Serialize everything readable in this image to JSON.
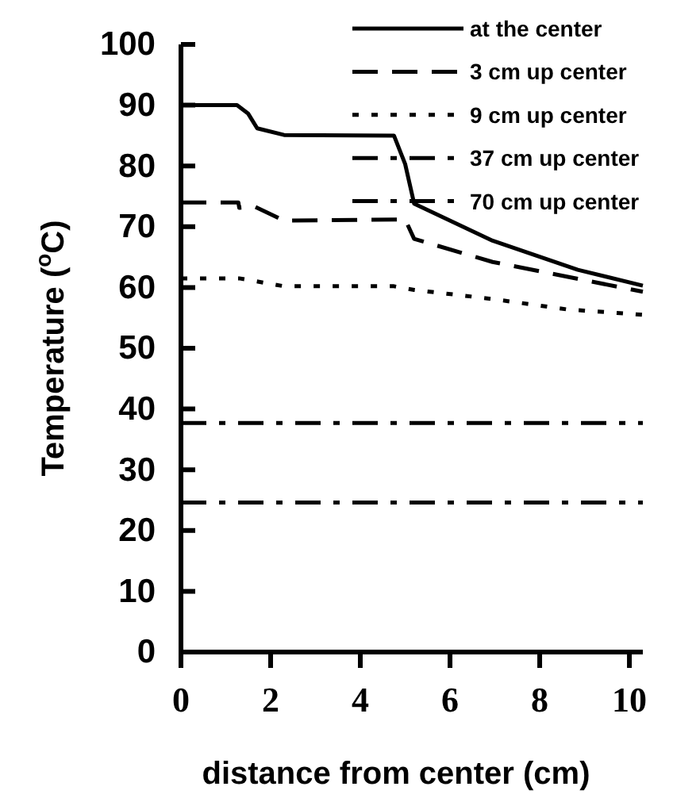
{
  "chart_data": {
    "type": "line",
    "xlabel": "distance from center (cm)",
    "ylabel": "Temperature ($^{o}$C)",
    "xlim": [
      0,
      10.3
    ],
    "xticks": [
      0,
      2,
      4,
      6,
      8,
      10
    ],
    "ylim": [
      0,
      100
    ],
    "yticks": [
      0,
      10,
      20,
      30,
      40,
      50,
      60,
      70,
      80,
      90,
      100
    ],
    "legend": "top right",
    "grid": false,
    "marker": "none",
    "series": [
      {
        "name": "at the center",
        "color": "#000000",
        "line_style": "solid",
        "x": [
          0,
          1.25,
          1.5,
          1.7,
          2.3,
          4.75,
          5.0,
          5.2,
          6.95,
          8.85,
          10.3
        ],
        "values": [
          90,
          90,
          88.6,
          86.2,
          85.1,
          85,
          80.3,
          73.8,
          67.7,
          62.9,
          60.3
        ]
      },
      {
        "name": "3 cm up center",
        "color": "#000000",
        "line_style": "dashed",
        "x": [
          0,
          1.28,
          1.3,
          1.65,
          2.3,
          5.0,
          5.2,
          6.95,
          10.3
        ],
        "values": [
          74,
          74,
          73.1,
          73.3,
          71,
          71.2,
          68,
          64.2,
          59.3
        ]
      },
      {
        "name": "9 cm up center",
        "color": "#000000",
        "line_style": "dotted",
        "x": [
          0,
          1.3,
          2.3,
          4.75,
          5.2,
          6.95,
          8.6,
          10.3
        ],
        "values": [
          61.5,
          61.5,
          60.2,
          60.2,
          59.6,
          58.1,
          56.4,
          55.5
        ]
      },
      {
        "name": "37 cm up center",
        "color": "#000000",
        "line_style": "dashdot",
        "x": [
          0,
          10.3
        ],
        "values": [
          37.7,
          37.7
        ]
      },
      {
        "name": "70 cm up center",
        "color": "#000000",
        "line_style": "dashdot",
        "x": [
          0,
          10.3
        ],
        "values": [
          24.6,
          24.6
        ]
      }
    ]
  }
}
